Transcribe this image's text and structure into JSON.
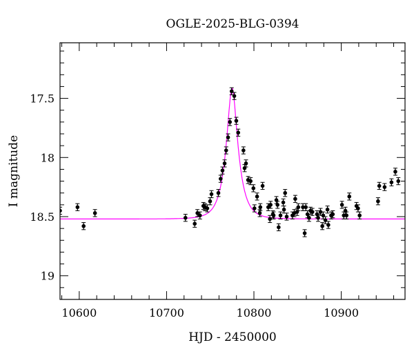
{
  "chart_data": {
    "type": "scatter",
    "title": "OGLE-2025-BLG-0394",
    "xlabel": "HJD - 2450000",
    "ylabel": "I magnitude",
    "xlim": [
      10578,
      10973
    ],
    "ylim": [
      19.2,
      17.03
    ],
    "y_inverted": true,
    "grid": false,
    "xticks": [
      10600,
      10700,
      10800,
      10900
    ],
    "xtick_labels": [
      "10600",
      "10700",
      "10800",
      "10900"
    ],
    "yticks": [
      17.5,
      18,
      18.5,
      19
    ],
    "ytick_labels": [
      "17.5",
      "18",
      "18.5",
      "19"
    ],
    "colors": {
      "points": "#000000",
      "model": "#ff00ff"
    },
    "model": {
      "t0": 10775,
      "u0": 0.38,
      "tE": 13,
      "baseline": 18.52
    },
    "points": [
      [
        10578,
        18.45
      ],
      [
        10598,
        18.42
      ],
      [
        10605,
        18.58
      ],
      [
        10618,
        18.47
      ],
      [
        10721.6,
        18.51
      ],
      [
        10732.2,
        18.56
      ],
      [
        10735.3,
        18.47
      ],
      [
        10738.2,
        18.49
      ],
      [
        10742.1,
        18.41
      ],
      [
        10744,
        18.42
      ],
      [
        10746.6,
        18.43
      ],
      [
        10749.8,
        18.37
      ],
      [
        10751.4,
        18.31
      ],
      [
        10759.3,
        18.3
      ],
      [
        10761.9,
        18.18
      ],
      [
        10764,
        18.11
      ],
      [
        10766.4,
        18.05
      ],
      [
        10768.2,
        17.94
      ],
      [
        10770.4,
        17.83
      ],
      [
        10772.5,
        17.7
      ],
      [
        10774.5,
        17.44
      ],
      [
        10777.5,
        17.48
      ],
      [
        10779.8,
        17.69
      ],
      [
        10782,
        17.79
      ],
      [
        10788,
        17.94
      ],
      [
        10789.3,
        18.09
      ],
      [
        10790.9,
        18.05
      ],
      [
        10793.3,
        18.19
      ],
      [
        10796.2,
        18.2
      ],
      [
        10799.4,
        18.26
      ],
      [
        10800.6,
        18.43
      ],
      [
        10803.6,
        18.33
      ],
      [
        10806.7,
        18.47
      ],
      [
        10807.3,
        18.42
      ],
      [
        10809.9,
        18.24
      ],
      [
        10816.4,
        18.42
      ],
      [
        10818.3,
        18.52
      ],
      [
        10819.1,
        18.4
      ],
      [
        10821.7,
        18.48
      ],
      [
        10822.5,
        18.49
      ],
      [
        10825.7,
        18.36
      ],
      [
        10827,
        18.4
      ],
      [
        10828.3,
        18.59
      ],
      [
        10830.4,
        18.49
      ],
      [
        10833.6,
        18.38
      ],
      [
        10834.4,
        18.44
      ],
      [
        10835.7,
        18.3
      ],
      [
        10837.5,
        18.5
      ],
      [
        10844.1,
        18.49
      ],
      [
        10846.2,
        18.47
      ],
      [
        10847.3,
        18.35
      ],
      [
        10849.4,
        18.46
      ],
      [
        10850.8,
        18.42
      ],
      [
        10856.1,
        18.42
      ],
      [
        10858.1,
        18.64
      ],
      [
        10859.4,
        18.42
      ],
      [
        10861.3,
        18.48
      ],
      [
        10863.1,
        18.51
      ],
      [
        10864.7,
        18.45
      ],
      [
        10866.9,
        18.46
      ],
      [
        10872.2,
        18.48
      ],
      [
        10873.5,
        18.51
      ],
      [
        10876.2,
        18.46
      ],
      [
        10878.3,
        18.58
      ],
      [
        10879.3,
        18.49
      ],
      [
        10881.8,
        18.53
      ],
      [
        10884.2,
        18.44
      ],
      [
        10885.2,
        18.57
      ],
      [
        10888.4,
        18.49
      ],
      [
        10890.3,
        18.48
      ],
      [
        10900.8,
        18.4
      ],
      [
        10902.9,
        18.49
      ],
      [
        10904.7,
        18.45
      ],
      [
        10906,
        18.49
      ],
      [
        10909.2,
        18.33
      ],
      [
        10917.4,
        18.41
      ],
      [
        10919.2,
        18.43
      ],
      [
        10921,
        18.49
      ],
      [
        10942.1,
        18.37
      ],
      [
        10943.5,
        18.24
      ],
      [
        10949.6,
        18.25
      ],
      [
        10957.5,
        18.21
      ],
      [
        10961.9,
        18.12
      ],
      [
        10965.3,
        18.2
      ]
    ],
    "error": 0.03
  }
}
